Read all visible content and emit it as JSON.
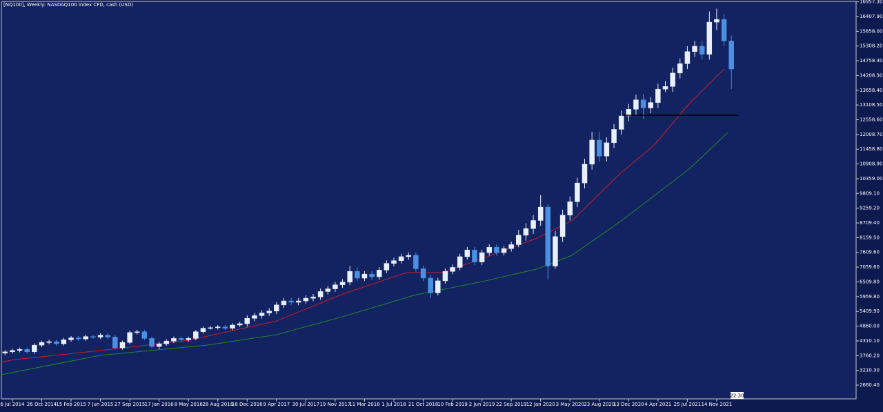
{
  "chart_data": {
    "type": "candlestick",
    "title": "[NQ100], Weekly:  NASDAQ100 Index CFD, cash (USD)",
    "background": "#132260",
    "up_color": "#e8f0ff",
    "down_color": "#4a90e2",
    "x": [
      -4,
      0,
      4,
      8,
      12,
      16,
      20,
      24,
      28,
      32,
      36,
      40,
      44,
      48,
      52,
      56,
      60,
      64,
      68,
      72,
      76,
      80,
      84,
      88,
      92,
      96,
      100,
      104,
      108,
      112,
      116,
      120,
      124,
      128,
      132,
      136,
      140,
      144,
      148,
      152,
      156,
      160,
      164,
      168,
      172,
      176,
      180,
      184,
      188,
      192,
      196,
      200,
      204,
      208,
      212,
      216,
      220,
      224,
      228,
      232,
      236,
      240,
      244,
      248,
      252,
      256,
      260,
      264,
      268,
      272,
      276,
      280,
      284,
      288,
      292,
      296,
      300,
      304,
      308,
      312,
      316,
      320,
      324,
      328,
      332,
      336,
      340,
      344,
      348,
      352,
      356,
      360,
      364,
      368,
      372,
      376,
      380,
      384,
      388,
      392
    ],
    "open": [
      3850,
      3900,
      3950,
      3990,
      3900,
      4150,
      4250,
      4280,
      4200,
      4350,
      4420,
      4380,
      4470,
      4450,
      4520,
      4450,
      4050,
      4250,
      4620,
      4650,
      4400,
      4100,
      4200,
      4300,
      4400,
      4350,
      4400,
      4650,
      4780,
      4800,
      4830,
      4780,
      4900,
      4950,
      5150,
      5250,
      5350,
      5420,
      5650,
      5800,
      5750,
      5800,
      5900,
      5950,
      6150,
      6250,
      6400,
      6500,
      6900,
      6650,
      6800,
      6700,
      6950,
      7200,
      7300,
      7450,
      7500,
      7000,
      6650,
      6100,
      6550,
      6900,
      7050,
      7450,
      7700,
      7250,
      7600,
      7800,
      7600,
      7750,
      7900,
      8250,
      8500,
      8800,
      9300,
      7100,
      8200,
      9000,
      9500,
      10200,
      10900,
      11800,
      11200,
      11700,
      12200,
      12700,
      12950,
      13300,
      13000,
      13200,
      13700,
      13800,
      14300,
      14650,
      15100,
      15300,
      15000,
      16200,
      16300,
      15500
    ],
    "high": [
      3970,
      4020,
      4060,
      4060,
      4220,
      4320,
      4350,
      4350,
      4420,
      4490,
      4490,
      4540,
      4540,
      4590,
      4590,
      4520,
      4320,
      4690,
      4720,
      4720,
      4470,
      4270,
      4370,
      4470,
      4470,
      4470,
      4720,
      4850,
      4870,
      4900,
      4900,
      4970,
      5020,
      5260,
      5360,
      5460,
      5530,
      5760,
      5910,
      5910,
      5910,
      6010,
      6060,
      6260,
      6360,
      6510,
      6610,
      7100,
      7050,
      6910,
      6910,
      7060,
      7310,
      7410,
      7560,
      7610,
      7610,
      7110,
      6760,
      6660,
      7010,
      7160,
      7560,
      7810,
      7810,
      7710,
      7910,
      7910,
      7860,
      8010,
      8450,
      8700,
      9000,
      9750,
      9400,
      8400,
      9200,
      9700,
      10400,
      11100,
      12100,
      12100,
      11900,
      12400,
      12900,
      13150,
      13500,
      13500,
      13400,
      13900,
      14000,
      14500,
      14850,
      15300,
      15500,
      15500,
      16600,
      16700,
      16500,
      15700
    ],
    "low": [
      3780,
      3830,
      3880,
      3830,
      3830,
      4080,
      4180,
      4130,
      4130,
      4280,
      4310,
      4310,
      4380,
      4380,
      4380,
      3980,
      3980,
      4180,
      4550,
      4330,
      4030,
      4000,
      4130,
      4230,
      4280,
      4280,
      4330,
      4580,
      4730,
      4730,
      4710,
      4710,
      4830,
      4840,
      5040,
      5140,
      5240,
      5310,
      5540,
      5640,
      5640,
      5690,
      5790,
      5840,
      6040,
      6140,
      6290,
      6390,
      6540,
      6540,
      6590,
      6590,
      6840,
      7090,
      7190,
      7340,
      6890,
      6540,
      5900,
      6000,
      6440,
      6790,
      6940,
      7340,
      7140,
      7140,
      7490,
      7490,
      7490,
      7640,
      7800,
      8050,
      8300,
      8600,
      6600,
      7000,
      8000,
      8800,
      9300,
      10000,
      10700,
      11000,
      11000,
      11500,
      12000,
      12500,
      12750,
      12600,
      12800,
      13000,
      13600,
      13600,
      14100,
      14450,
      14900,
      14800,
      14800,
      15900,
      15300,
      13700
    ],
    "close": [
      3900,
      3950,
      3990,
      3900,
      4150,
      4250,
      4280,
      4200,
      4350,
      4420,
      4380,
      4470,
      4450,
      4520,
      4450,
      4050,
      4250,
      4620,
      4650,
      4400,
      4100,
      4200,
      4300,
      4400,
      4350,
      4400,
      4650,
      4780,
      4800,
      4830,
      4780,
      4900,
      4950,
      5150,
      5250,
      5350,
      5420,
      5650,
      5800,
      5750,
      5800,
      5900,
      5950,
      6150,
      6250,
      6400,
      6500,
      6900,
      6650,
      6800,
      6700,
      6950,
      7200,
      7300,
      7450,
      7500,
      7000,
      6650,
      6100,
      6550,
      6900,
      7050,
      7450,
      7700,
      7250,
      7600,
      7800,
      7600,
      7750,
      7900,
      8250,
      8500,
      8800,
      9300,
      7100,
      8200,
      9000,
      9500,
      10200,
      10900,
      11800,
      11200,
      11700,
      12200,
      12700,
      12950,
      13300,
      13000,
      13200,
      13700,
      13800,
      14300,
      14650,
      15100,
      15300,
      15000,
      16200,
      16300,
      15500,
      14450
    ],
    "lines": [
      {
        "color": "#c8202a",
        "x": [
          -6,
          0,
          48,
          96,
          144,
          181,
          215,
          234,
          256,
          286,
          305,
          332,
          350,
          369,
          388
        ],
        "values": [
          3512,
          3600,
          3950,
          4330,
          5050,
          6080,
          6860,
          6860,
          7370,
          8140,
          8790,
          10590,
          11620,
          13160,
          14450
        ]
      },
      {
        "color": "#1f8a2e",
        "x": [
          -6,
          48,
          106,
          144,
          181,
          219,
          256,
          286,
          305,
          332,
          369,
          390
        ],
        "values": [
          3050,
          3770,
          4150,
          4540,
          5230,
          6010,
          6520,
          6990,
          7500,
          8790,
          10720,
          12080
        ]
      }
    ],
    "horizontal_line": {
      "value": 12727,
      "x": [
        333,
        396
      ],
      "color": "#000000"
    },
    "time_label": "22:30",
    "xlim": [
      -6,
      460
    ],
    "xticks": [
      {
        "value": 0,
        "label": "6 Jul 2014"
      },
      {
        "value": 16,
        "label": "26 Oct 2014"
      },
      {
        "value": 32,
        "label": "15 Feb 2015"
      },
      {
        "value": 48,
        "label": "7 Jun 2015"
      },
      {
        "value": 64,
        "label": "27 Sep 2015"
      },
      {
        "value": 80,
        "label": "17 Jan 2016"
      },
      {
        "value": 96,
        "label": "8 May 2016"
      },
      {
        "value": 112,
        "label": "28 Aug 2016"
      },
      {
        "value": 128,
        "label": "18 Dec 2016"
      },
      {
        "value": 144,
        "label": "9 Apr 2017"
      },
      {
        "value": 160,
        "label": "30 Jul 2017"
      },
      {
        "value": 176,
        "label": "19 Nov 2017"
      },
      {
        "value": 192,
        "label": "11 Mar 2018"
      },
      {
        "value": 208,
        "label": "1 Jul 2018"
      },
      {
        "value": 224,
        "label": "21 Oct 2018"
      },
      {
        "value": 240,
        "label": "10 Feb 2019"
      },
      {
        "value": 256,
        "label": "2 Jun 2019"
      },
      {
        "value": 272,
        "label": "22 Sep 2019"
      },
      {
        "value": 288,
        "label": "12 Jan 2020"
      },
      {
        "value": 304,
        "label": "3 May 2020"
      },
      {
        "value": 320,
        "label": "23 Aug 2020"
      },
      {
        "value": 336,
        "label": "13 Dec 2020"
      },
      {
        "value": 352,
        "label": "4 Apr 2021"
      },
      {
        "value": 368,
        "label": "25 Jul 2021"
      },
      {
        "value": 384,
        "label": "14 Nov 2021"
      }
    ],
    "ylim": [
      2145,
      16974
    ],
    "yticks": [
      {
        "value": 16957.3,
        "label": "16957.30"
      },
      {
        "value": 16407.9,
        "label": "16407.90"
      },
      {
        "value": 15858,
        "label": "15858.00"
      },
      {
        "value": 15308.2,
        "label": "15308.20"
      },
      {
        "value": 14758.3,
        "label": "14758.30"
      },
      {
        "value": 14208.3,
        "label": "14208.30"
      },
      {
        "value": 13658.4,
        "label": "13658.40"
      },
      {
        "value": 13108.5,
        "label": "13108.50"
      },
      {
        "value": 12558.6,
        "label": "12558.60"
      },
      {
        "value": 12008.7,
        "label": "12008.70"
      },
      {
        "value": 11458.8,
        "label": "11458.80"
      },
      {
        "value": 10908.9,
        "label": "10908.90"
      },
      {
        "value": 10359,
        "label": "10359.00"
      },
      {
        "value": 9809.1,
        "label": "9809.10"
      },
      {
        "value": 9259.2,
        "label": "9259.20"
      },
      {
        "value": 8709.4,
        "label": "8709.40"
      },
      {
        "value": 8159.5,
        "label": "8159.50"
      },
      {
        "value": 7609.6,
        "label": "7609.60"
      },
      {
        "value": 7059.6,
        "label": "7059.60"
      },
      {
        "value": 6509.8,
        "label": "6509.80"
      },
      {
        "value": 5959.8,
        "label": "5959.80"
      },
      {
        "value": 5409.9,
        "label": "5409.90"
      },
      {
        "value": 4860,
        "label": "4860.00"
      },
      {
        "value": 4310.1,
        "label": "4310.10"
      },
      {
        "value": 3760.2,
        "label": "3760.20"
      },
      {
        "value": 3210.3,
        "label": "3210.30"
      },
      {
        "value": 2660.4,
        "label": "2660.40"
      }
    ]
  }
}
